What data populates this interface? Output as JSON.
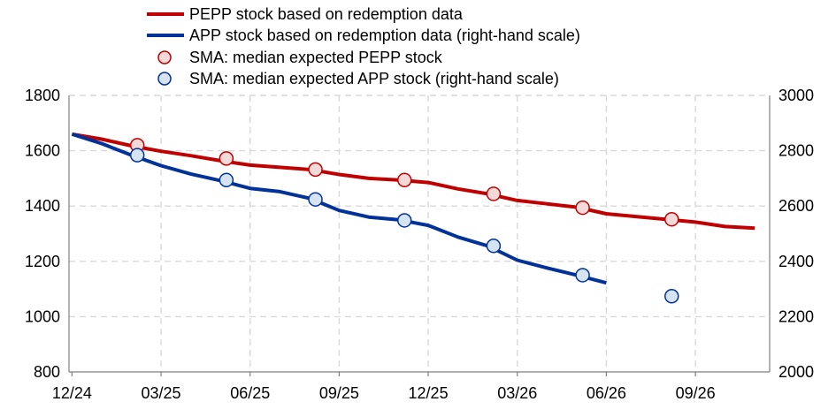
{
  "chart_data": {
    "type": "line",
    "title": "",
    "xlabel": "",
    "ylabel": "",
    "x_ticks": [
      "12/24",
      "03/25",
      "06/25",
      "09/25",
      "12/25",
      "03/26",
      "06/26",
      "09/26"
    ],
    "x_tick_months": [
      0,
      3,
      6,
      9,
      12,
      15,
      18,
      21
    ],
    "xlim": [
      -0.1,
      23.5
    ],
    "left_axis": {
      "range": [
        800,
        1800
      ],
      "ticks": [
        "800",
        "1000",
        "1200",
        "1400",
        "1600",
        "1800"
      ]
    },
    "right_axis": {
      "range": [
        2000,
        3000
      ],
      "ticks": [
        "2000",
        "2200",
        "2400",
        "2600",
        "2800",
        "3000"
      ]
    },
    "grid": true,
    "legend_position": "top",
    "colors": {
      "pepp_line": "#c00000",
      "app_line": "#003299",
      "pepp_marker_fill": "#f4d9d9",
      "app_marker_fill": "#d6e4f2"
    },
    "series": [
      {
        "name": "PEPP stock based on redemption data",
        "kind": "line",
        "axis": "left",
        "x": [
          0,
          1,
          2,
          3,
          4,
          5,
          6,
          7,
          8,
          9,
          10,
          11,
          12,
          13,
          14,
          15,
          16,
          17,
          18,
          19,
          20,
          21,
          22,
          23
        ],
        "values": [
          1660,
          1642,
          1618,
          1598,
          1582,
          1564,
          1548,
          1540,
          1532,
          1514,
          1500,
          1494,
          1485,
          1462,
          1444,
          1420,
          1408,
          1396,
          1372,
          1362,
          1352,
          1342,
          1326,
          1320
        ]
      },
      {
        "name": "APP stock based on redemption data (right-hand scale)",
        "kind": "line",
        "axis": "right",
        "x": [
          0,
          1,
          2,
          3,
          4,
          5,
          6,
          7,
          8,
          9,
          10,
          11,
          12,
          13,
          14,
          15,
          16,
          17,
          18
        ],
        "values": [
          2860,
          2826,
          2784,
          2746,
          2716,
          2692,
          2664,
          2652,
          2628,
          2584,
          2560,
          2550,
          2530,
          2488,
          2456,
          2404,
          2376,
          2350,
          2322
        ]
      },
      {
        "name": "SMA: median expected PEPP stock",
        "kind": "markers",
        "axis": "left",
        "x": [
          2.2,
          5.2,
          8.2,
          11.2,
          14.2,
          17.2,
          20.2
        ],
        "values": [
          1620,
          1572,
          1532,
          1494,
          1444,
          1394,
          1352
        ]
      },
      {
        "name": "SMA: median expected APP stock (right-hand scale)",
        "kind": "markers",
        "axis": "right",
        "x": [
          2.2,
          5.2,
          8.2,
          11.2,
          14.2,
          17.2,
          20.2
        ],
        "values": [
          2784,
          2694,
          2624,
          2548,
          2456,
          2350,
          2274
        ]
      }
    ]
  }
}
